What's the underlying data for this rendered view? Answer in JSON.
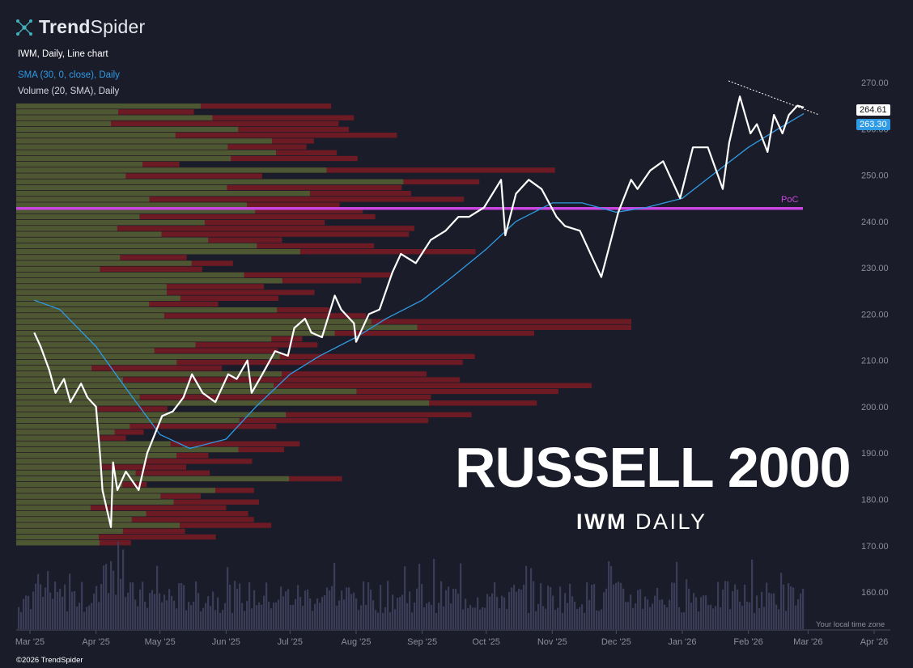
{
  "brand": {
    "name_bold": "Trend",
    "name_rest": "Spider",
    "logo_icon": "spider-node-icon"
  },
  "indicators": {
    "main": "IWM, Daily, Line chart",
    "sma": "SMA (30, 0, close), Daily",
    "volume": "Volume (20, SMA), Daily"
  },
  "overlay": {
    "title": "RUSSELL 2000",
    "sub_bold": "IWM",
    "sub_rest": "DAILY"
  },
  "footer": {
    "copyright": "©2026 TrendSpider",
    "timezone": "Your local time zone"
  },
  "tags": {
    "last": "264.61",
    "sma": "263.30"
  },
  "colors": {
    "background": "#1b1c29",
    "price_line": "#ffffff",
    "sma_line": "#2e9be4",
    "vp_up": "#4a5e34",
    "vp_down": "#7a1a22",
    "poc": "#c845e0",
    "volume": "#3a3c58"
  },
  "chart_data": {
    "type": "line",
    "title": "IWM, Daily, Line chart",
    "ylim": [
      155,
      272
    ],
    "y_ticks": [
      "270.00",
      "260.00",
      "250.00",
      "240.00",
      "230.00",
      "220.00",
      "210.00",
      "200.00",
      "190.00",
      "180.00",
      "170.00",
      "160.00"
    ],
    "x_ticks": [
      "Mar '25",
      "Apr '25",
      "May '25",
      "Jun '25",
      "Jul '25",
      "Aug '25",
      "Sep '25",
      "Oct '25",
      "Nov '25",
      "Dec '25",
      "Jan '26",
      "Feb '26",
      "Mar '26",
      "Apr '26"
    ],
    "poc": {
      "label": "PoC",
      "value": 242.8
    },
    "series": [
      {
        "name": "IWM",
        "x": [
          "2025-03-03",
          "2025-03-06",
          "2025-03-10",
          "2025-03-13",
          "2025-03-17",
          "2025-03-20",
          "2025-03-25",
          "2025-03-28",
          "2025-04-01",
          "2025-04-03",
          "2025-04-04",
          "2025-04-08",
          "2025-04-09",
          "2025-04-11",
          "2025-04-15",
          "2025-04-21",
          "2025-04-25",
          "2025-05-02",
          "2025-05-07",
          "2025-05-12",
          "2025-05-16",
          "2025-05-21",
          "2025-05-27",
          "2025-06-02",
          "2025-06-06",
          "2025-06-11",
          "2025-06-13",
          "2025-06-18",
          "2025-06-24",
          "2025-06-30",
          "2025-07-03",
          "2025-07-08",
          "2025-07-11",
          "2025-07-16",
          "2025-07-22",
          "2025-07-25",
          "2025-07-31",
          "2025-08-01",
          "2025-08-07",
          "2025-08-12",
          "2025-08-18",
          "2025-08-22",
          "2025-08-29",
          "2025-09-05",
          "2025-09-12",
          "2025-09-18",
          "2025-09-23",
          "2025-09-30",
          "2025-10-08",
          "2025-10-10",
          "2025-10-15",
          "2025-10-21",
          "2025-10-27",
          "2025-11-03",
          "2025-11-07",
          "2025-11-14",
          "2025-11-20",
          "2025-11-24",
          "2025-12-02",
          "2025-12-08",
          "2025-12-11",
          "2025-12-17",
          "2025-12-23",
          "2025-12-31",
          "2026-01-06",
          "2026-01-13",
          "2026-01-20",
          "2026-01-23",
          "2026-01-28",
          "2026-02-02",
          "2026-02-05",
          "2026-02-10",
          "2026-02-13",
          "2026-02-17",
          "2026-02-20",
          "2026-02-24",
          "2026-02-27"
        ],
        "values": [
          216,
          213,
          208,
          203,
          206,
          201,
          205,
          202,
          200,
          189,
          182,
          174,
          188,
          182,
          186,
          182,
          190,
          198,
          199,
          202,
          207,
          203,
          201,
          207,
          206,
          210,
          203,
          207,
          212,
          211,
          217,
          219,
          216,
          215,
          224,
          221,
          218,
          214,
          220,
          221,
          229,
          233,
          231,
          236,
          238,
          241,
          241,
          243,
          249,
          237,
          246,
          249,
          247,
          241,
          239,
          238,
          232,
          228,
          242,
          249,
          247,
          251,
          253,
          245,
          256,
          256,
          247,
          257,
          267,
          259,
          261,
          255,
          263,
          259,
          263,
          265,
          264.61
        ]
      },
      {
        "name": "SMA (30, 0, close)",
        "x": [
          "2025-03-03",
          "2025-03-15",
          "2025-04-01",
          "2025-04-15",
          "2025-05-01",
          "2025-05-15",
          "2025-06-01",
          "2025-06-15",
          "2025-07-01",
          "2025-07-15",
          "2025-08-01",
          "2025-08-15",
          "2025-09-01",
          "2025-09-15",
          "2025-10-01",
          "2025-10-15",
          "2025-11-01",
          "2025-11-15",
          "2025-12-01",
          "2025-12-15",
          "2026-01-01",
          "2026-01-15",
          "2026-02-01",
          "2026-02-15",
          "2026-02-27"
        ],
        "values": [
          223,
          221,
          213,
          204,
          194,
          191,
          193,
          200,
          207,
          211,
          215,
          219,
          223,
          228,
          234,
          240,
          244,
          244,
          242,
          243,
          245,
          250,
          256,
          260,
          263.3
        ]
      }
    ]
  }
}
